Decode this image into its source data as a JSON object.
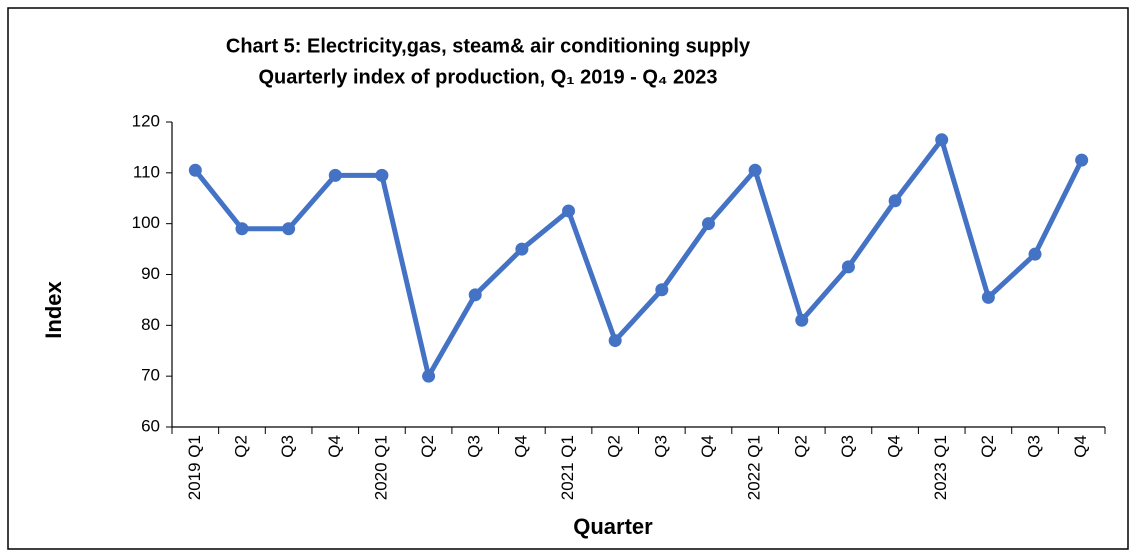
{
  "chart_data": {
    "type": "line",
    "title": "Chart 5: Electricity,gas, steam& air conditioning supply",
    "subtitle": "Quarterly index of production, Q₁ 2019 - Q₄ 2023",
    "x_label": "Quarter",
    "y_label": "Index",
    "categories": [
      "2019 Q1",
      "Q2",
      "Q3",
      "Q4",
      "2020 Q1",
      "Q2",
      "Q3",
      "Q4",
      "2021 Q1",
      "Q2",
      "Q3",
      "Q4",
      "2022 Q1",
      "Q2",
      "Q3",
      "Q4",
      "2023 Q1",
      "Q2",
      "Q3",
      "Q4"
    ],
    "series": [
      {
        "name": "Index",
        "color": "#4472c4",
        "values": [
          110.5,
          99,
          99,
          109.5,
          109.5,
          70,
          86,
          95,
          102.5,
          77,
          87,
          100,
          110.5,
          81,
          91.5,
          104.5,
          116.5,
          85.5,
          94,
          112.5
        ]
      }
    ],
    "ylim": [
      60,
      120
    ],
    "yticks": [
      60,
      70,
      80,
      90,
      100,
      110,
      120
    ],
    "grid": false
  }
}
